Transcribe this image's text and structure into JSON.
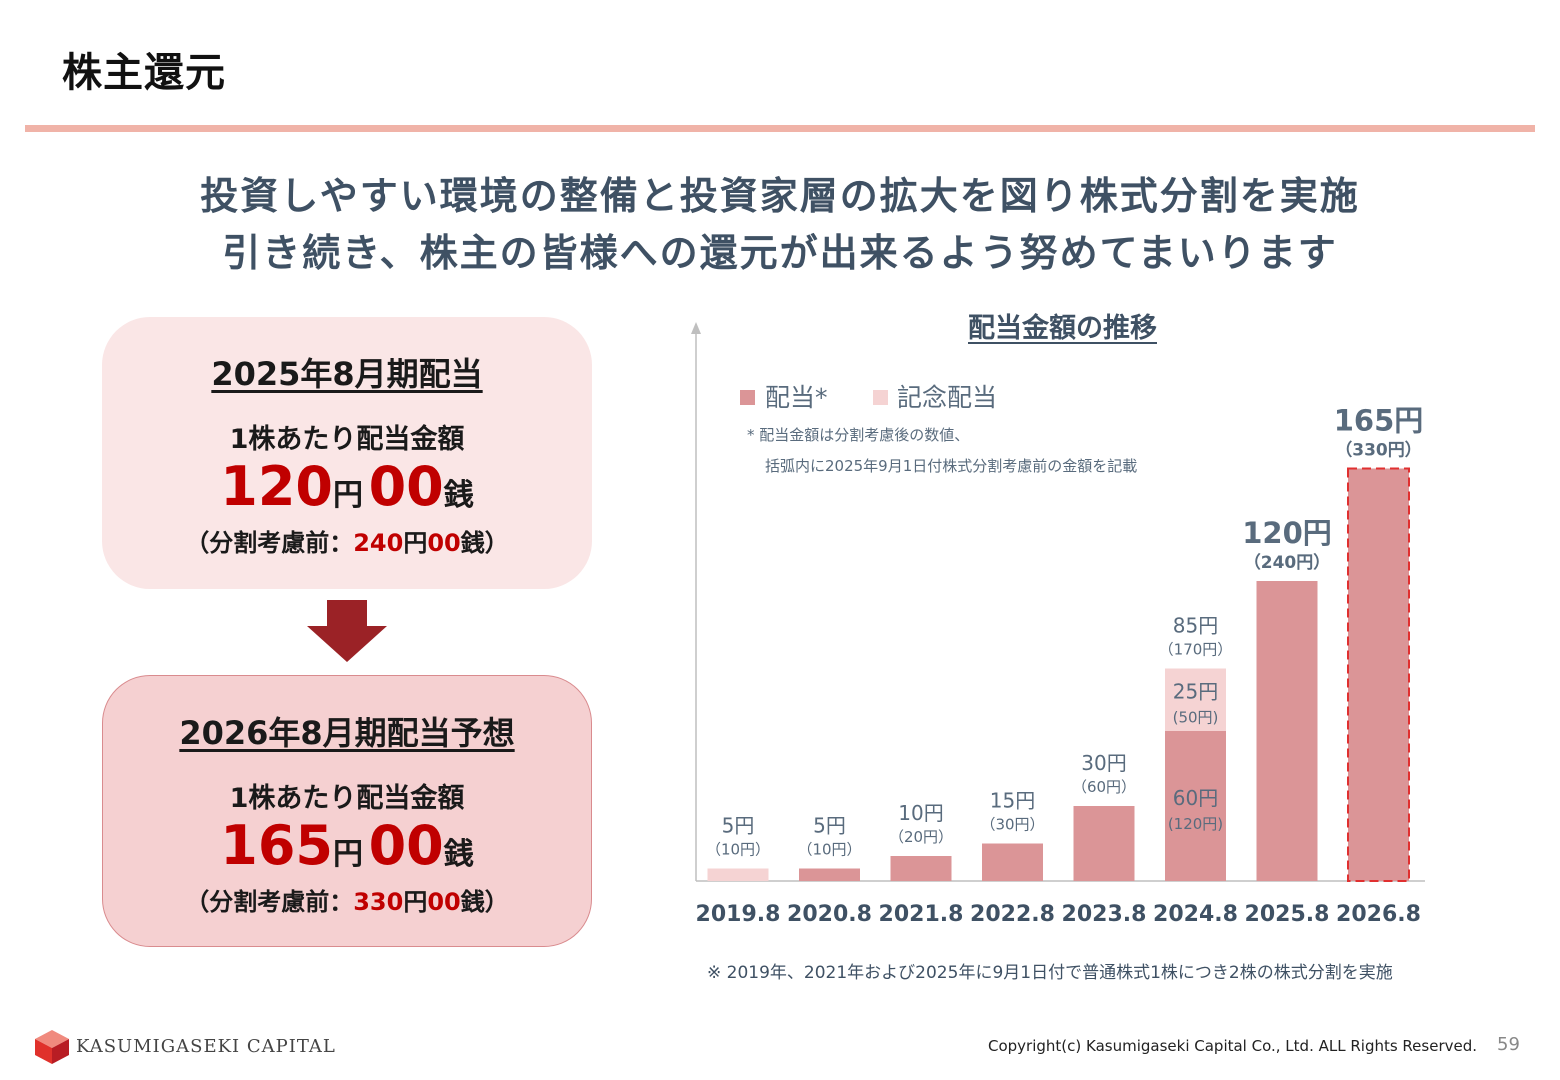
{
  "page_title": "株主還元",
  "headline": {
    "line1": "投資しやすい環境の整備と投資家層の拡大を図り株式分割を実施",
    "line2": "引き続き、株主の皆様への還元が出来るよう努めてまいります"
  },
  "card_current": {
    "title": "2025年8月期配当",
    "subtitle": "1株あたり配当金額",
    "amount_yen": "120",
    "yen_unit": "円",
    "amount_sen": "00",
    "sen_unit": "銭",
    "before_prefix": "（分割考慮前：",
    "before_yen": "240",
    "before_yen_unit": "円",
    "before_sen": "00",
    "before_suffix": "銭）"
  },
  "card_forecast": {
    "title": "2026年8月期配当予想",
    "subtitle": "1株あたり配当金額",
    "amount_yen": "165",
    "yen_unit": "円",
    "amount_sen": "00",
    "sen_unit": "銭",
    "before_prefix": "（分割考慮前：",
    "before_yen": "330",
    "before_yen_unit": "円",
    "before_sen": "00",
    "before_suffix": "銭）"
  },
  "chart_data": {
    "type": "bar",
    "stacked": true,
    "title": "配当金額の推移",
    "categories": [
      "2019.8",
      "2020.8",
      "2021.8",
      "2022.8",
      "2023.8",
      "2024.8",
      "2025.8",
      "2026.8"
    ],
    "series": [
      {
        "name": "配当*",
        "values": [
          0,
          5,
          10,
          15,
          30,
          60,
          120,
          165
        ],
        "color": "#db9597"
      },
      {
        "name": "記念配当",
        "values": [
          5,
          0,
          0,
          0,
          0,
          25,
          0,
          0
        ],
        "color": "#f5d3d3"
      }
    ],
    "total_labels": [
      "5円",
      "5円",
      "10円",
      "15円",
      "30円",
      "85円",
      "120円",
      "165円"
    ],
    "pre_split_labels": [
      "（10円）",
      "（10円）",
      "（20円）",
      "（30円）",
      "（60円）",
      "（170円）",
      "（240円）",
      "（330円）"
    ],
    "segment_labels": [
      {
        "category": "2024.8",
        "value": "60円",
        "pre_split": "(120円)"
      },
      {
        "category": "2024.8",
        "value": "25円",
        "pre_split": "(50円)"
      }
    ],
    "forecast_category": "2026.8",
    "legend_position": "top-left",
    "grid": false,
    "ylim": [
      0,
      180
    ],
    "notes": [
      "*  配当金額は分割考慮後の数値、",
      "括弧内に2025年9月1日付株式分割考慮前の金額を記載"
    ]
  },
  "footnote": "※ 2019年、2021年および2025年に9月1日付で普通株式1株につき2株の株式分割を実施",
  "company_logo_text": "KASUMIGASEKI CAPITAL",
  "copyright": "Copyright(c) Kasumigaseki Capital Co., Ltd. ALL Rights Reserved.",
  "page_number": "59",
  "colors": {
    "accent_rule": "#f0b3a8",
    "headline": "#3f5164",
    "amount_red": "#c00000",
    "arrow": "#9b2226"
  }
}
